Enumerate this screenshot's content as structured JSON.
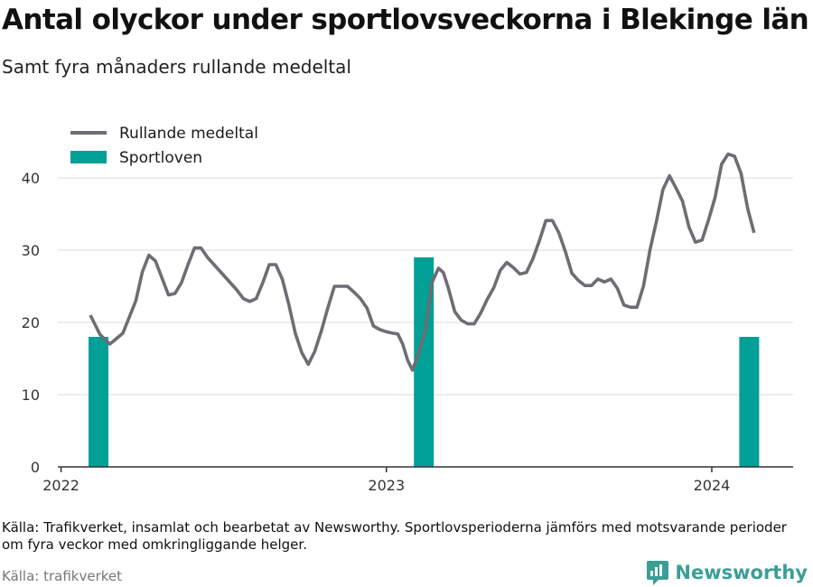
{
  "title": "Antal olyckor under sportlovsveckorna i Blekinge län",
  "subtitle": "Samt fyra månaders rullande medeltal",
  "note": "Källa: Trafikverket, insamlat och bearbetat av Newsworthy. Sportlovsperioderna jämförs med motsvarande perioder om fyra veckor med omkringliggande helger.",
  "source": "Källa: trafikverket",
  "brand": "Newsworthy",
  "colors": {
    "line": "#6d6d73",
    "bar": "#00a096",
    "grid": "#e2e2e2",
    "axis": "#333333",
    "brand": "#3a9e96"
  },
  "chart_data": {
    "type": "bar+line",
    "xlim": [
      2021.99,
      2024.25
    ],
    "ylim": [
      0,
      45
    ],
    "y_ticks": [
      "0",
      "10",
      "20",
      "30",
      "40"
    ],
    "x_ticks": [
      {
        "value": 2022,
        "label": "2022"
      },
      {
        "value": 2023,
        "label": "2023"
      },
      {
        "value": 2024,
        "label": "2024"
      }
    ],
    "legend": {
      "placement": "top-left"
    },
    "series": [
      {
        "name": "Rullande medeltal",
        "kind": "line",
        "points": [
          [
            2022.09,
            21
          ],
          [
            2022.12,
            18.3
          ],
          [
            2022.15,
            17
          ],
          [
            2022.19,
            18.5
          ],
          [
            2022.23,
            23
          ],
          [
            2022.25,
            27
          ],
          [
            2022.27,
            29.3
          ],
          [
            2022.29,
            28.5
          ],
          [
            2022.33,
            23.8
          ],
          [
            2022.35,
            24
          ],
          [
            2022.37,
            25.5
          ],
          [
            2022.39,
            28
          ],
          [
            2022.41,
            30.3
          ],
          [
            2022.43,
            30.3
          ],
          [
            2022.45,
            29
          ],
          [
            2022.48,
            27.5
          ],
          [
            2022.52,
            25.5
          ],
          [
            2022.54,
            24.5
          ],
          [
            2022.56,
            23.3
          ],
          [
            2022.58,
            22.9
          ],
          [
            2022.6,
            23.3
          ],
          [
            2022.62,
            25.5
          ],
          [
            2022.64,
            28
          ],
          [
            2022.66,
            28
          ],
          [
            2022.68,
            26
          ],
          [
            2022.7,
            22.5
          ],
          [
            2022.72,
            18.5
          ],
          [
            2022.74,
            15.8
          ],
          [
            2022.76,
            14.2
          ],
          [
            2022.78,
            16
          ],
          [
            2022.8,
            18.8
          ],
          [
            2022.82,
            22
          ],
          [
            2022.84,
            25
          ],
          [
            2022.88,
            25
          ],
          [
            2022.9,
            24.2
          ],
          [
            2022.92,
            23.3
          ],
          [
            2022.94,
            22
          ],
          [
            2022.96,
            19.5
          ],
          [
            2022.98,
            19
          ],
          [
            2023.0,
            18.7
          ],
          [
            2023.02,
            18.5
          ],
          [
            2023.035,
            18.4
          ],
          [
            2023.05,
            17
          ],
          [
            2023.065,
            14.8
          ],
          [
            2023.08,
            13.4
          ],
          [
            2023.1,
            15.8
          ],
          [
            2023.12,
            19
          ],
          [
            2023.14,
            25.5
          ],
          [
            2023.16,
            27.5
          ],
          [
            2023.175,
            26.9
          ],
          [
            2023.19,
            24.8
          ],
          [
            2023.21,
            21.5
          ],
          [
            2023.23,
            20.3
          ],
          [
            2023.25,
            19.8
          ],
          [
            2023.27,
            19.8
          ],
          [
            2023.29,
            21.3
          ],
          [
            2023.31,
            23.2
          ],
          [
            2023.33,
            24.8
          ],
          [
            2023.35,
            27.2
          ],
          [
            2023.37,
            28.3
          ],
          [
            2023.39,
            27.6
          ],
          [
            2023.41,
            26.7
          ],
          [
            2023.43,
            26.9
          ],
          [
            2023.45,
            28.8
          ],
          [
            2023.47,
            31.3
          ],
          [
            2023.49,
            34.1
          ],
          [
            2023.51,
            34.1
          ],
          [
            2023.53,
            32.4
          ],
          [
            2023.55,
            29.8
          ],
          [
            2023.57,
            26.8
          ],
          [
            2023.59,
            25.8
          ],
          [
            2023.61,
            25.1
          ],
          [
            2023.63,
            25.1
          ],
          [
            2023.65,
            26
          ],
          [
            2023.67,
            25.6
          ],
          [
            2023.69,
            26
          ],
          [
            2023.71,
            24.7
          ],
          [
            2023.73,
            22.4
          ],
          [
            2023.75,
            22.1
          ],
          [
            2023.77,
            22.1
          ],
          [
            2023.79,
            25
          ],
          [
            2023.81,
            30
          ],
          [
            2023.83,
            34
          ],
          [
            2023.85,
            38.4
          ],
          [
            2023.87,
            40.3
          ],
          [
            2023.89,
            38.6
          ],
          [
            2023.91,
            36.8
          ],
          [
            2023.93,
            33.2
          ],
          [
            2023.95,
            31.1
          ],
          [
            2023.97,
            31.4
          ],
          [
            2023.99,
            34.2
          ],
          [
            2024.01,
            37.3
          ],
          [
            2024.03,
            41.9
          ],
          [
            2024.05,
            43.3
          ],
          [
            2024.07,
            43
          ],
          [
            2024.09,
            40.6
          ],
          [
            2024.11,
            35.8
          ],
          [
            2024.13,
            32.4
          ]
        ]
      },
      {
        "name": "Sportloven",
        "kind": "bar",
        "points": [
          [
            2022.115,
            18
          ],
          [
            2023.115,
            29
          ],
          [
            2024.115,
            18
          ]
        ]
      }
    ]
  }
}
